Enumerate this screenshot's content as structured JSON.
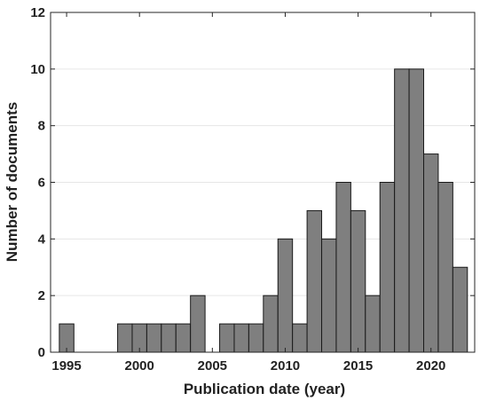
{
  "chart_data": {
    "type": "bar",
    "title": "",
    "xlabel": "Publication date (year)",
    "ylabel": "Number of documents",
    "x": [
      1995,
      1996,
      1997,
      1998,
      1999,
      2000,
      2001,
      2002,
      2003,
      2004,
      2005,
      2006,
      2007,
      2008,
      2009,
      2010,
      2011,
      2012,
      2013,
      2014,
      2015,
      2016,
      2017,
      2018,
      2019,
      2020,
      2021,
      2022
    ],
    "values": [
      1,
      0,
      0,
      0,
      1,
      1,
      1,
      1,
      1,
      2,
      0,
      1,
      1,
      1,
      2,
      4,
      1,
      5,
      4,
      6,
      5,
      2,
      6,
      10,
      10,
      7,
      6,
      3
    ],
    "xlim": [
      1993.9,
      1994.9,
      2023.0
    ],
    "ylim": [
      0,
      12
    ],
    "xticks": [
      1995,
      2000,
      2005,
      2010,
      2015,
      2020
    ],
    "yticks": [
      0,
      2,
      4,
      6,
      8,
      10,
      12
    ],
    "grid": "horizontal",
    "legend": "none",
    "colors": {
      "bar_fill": "#7f7f7f",
      "bar_stroke": "#1a1a1a",
      "grid": "#e6e6e6",
      "axis": "#262626"
    }
  }
}
